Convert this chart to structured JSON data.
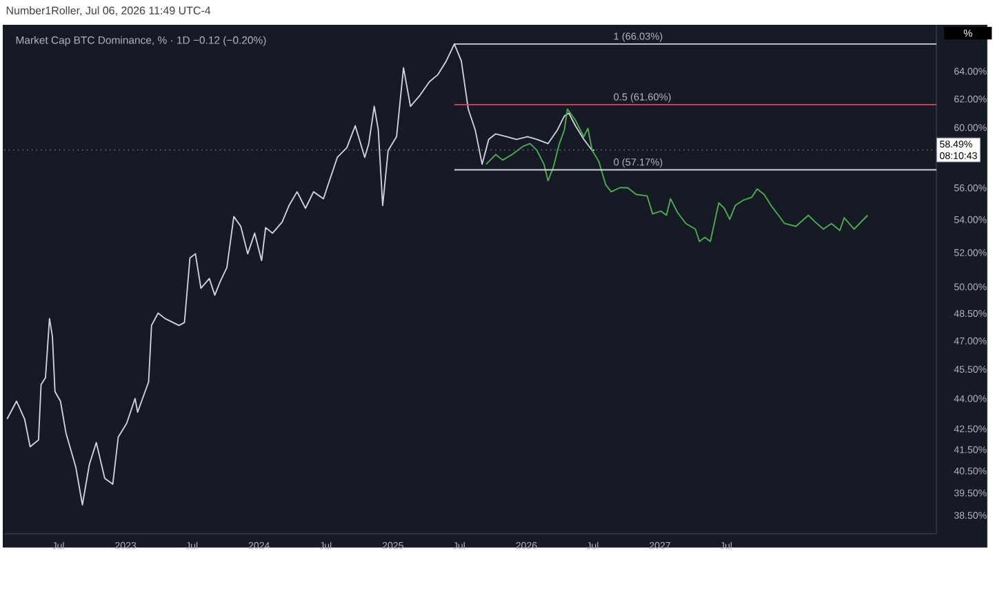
{
  "chart_data": {
    "type": "line",
    "title": "Market Cap BTC Dominance, % · 1D  −0.12 (−0.20%)",
    "subtitle": "Number1Roller, Jul 06, 2026 11:49 UTC-4",
    "ylabel": "%",
    "log": "y",
    "xlim": [
      "2022-02-03",
      "2029-01-26"
    ],
    "xticks": [
      {
        "value": "2022-07",
        "label": "Jul"
      },
      {
        "value": "2023",
        "label": "2023"
      },
      {
        "value": "2023-07",
        "label": "Jul"
      },
      {
        "value": "2024",
        "label": "2024"
      },
      {
        "value": "2024-07",
        "label": "Jul"
      },
      {
        "value": "2025",
        "label": "2025"
      },
      {
        "value": "2025-07",
        "label": "Jul"
      },
      {
        "value": "2026",
        "label": "2026"
      },
      {
        "value": "2026-07",
        "label": "Jul"
      },
      {
        "value": "2027",
        "label": "2027"
      },
      {
        "value": "2027-07",
        "label": "Jul"
      }
    ],
    "ylim": [
      37.7,
      67.5
    ],
    "yticks": [
      {
        "value": 38.5,
        "label": "38.50%"
      },
      {
        "value": 39.5,
        "label": "39.50%"
      },
      {
        "value": 40.5,
        "label": "40.50%"
      },
      {
        "value": 41.5,
        "label": "41.50%"
      },
      {
        "value": 42.5,
        "label": "42.50%"
      },
      {
        "value": 44,
        "label": "44.00%"
      },
      {
        "value": 45.5,
        "label": "45.50%"
      },
      {
        "value": 47,
        "label": "47.00%"
      },
      {
        "value": 48.5,
        "label": "48.50%"
      },
      {
        "value": 50,
        "label": "50.00%"
      },
      {
        "value": 52,
        "label": "52.00%"
      },
      {
        "value": 54,
        "label": "54.00%"
      },
      {
        "value": 56,
        "label": "56.00%"
      },
      {
        "value": 60,
        "label": "60.00%"
      },
      {
        "value": 62,
        "label": "62.00%"
      },
      {
        "value": 64,
        "label": "64.00%"
      }
    ],
    "ref_lines": [
      {
        "axis": "y",
        "value": 58.49,
        "label": "58.49%",
        "color": "#9598a1",
        "line_style": "dotted"
      }
    ],
    "annotations": [
      "08:10:43",
      {
        "text": "1 (66.03%)",
        "x": "2026-08-21",
        "y": 66.03
      },
      {
        "text": "0.5 (61.60%)",
        "x": "2026-08-21",
        "y": 61.6
      },
      {
        "text": "0 (57.17%)",
        "x": "2026-08-21",
        "y": 57.17
      }
    ],
    "series": [
      {
        "color": "#d1d4dc",
        "x": [
          "2022-02-11",
          "2022-03-09",
          "2022-03-31",
          "2022-04-15",
          "2022-05-08",
          "2022-05-15",
          "2022-05-27",
          "2022-06-07",
          "2022-06-15",
          "2022-06-22",
          "2022-07-07",
          "2022-07-22",
          "2022-08-18",
          "2022-09-05",
          "2022-09-24",
          "2022-10-13",
          "2022-11-05",
          "2022-11-27",
          "2022-12-12",
          "2023-01-04",
          "2023-01-27",
          "2023-02-03",
          "2023-03-05",
          "2023-03-13",
          "2023-03-31",
          "2023-04-19",
          "2023-05-27",
          "2023-06-11",
          "2023-06-26",
          "2023-07-11",
          "2023-07-26",
          "2023-08-18",
          "2023-09-02",
          "2023-09-17",
          "2023-10-05",
          "2023-10-24",
          "2023-11-12",
          "2023-12-01",
          "2023-12-20",
          "2024-01-08",
          "2024-01-19",
          "2024-02-07",
          "2024-03-04",
          "2024-03-23",
          "2024-04-14",
          "2024-05-07",
          "2024-05-29",
          "2024-06-25",
          "2024-07-14",
          "2024-08-02",
          "2024-08-28",
          "2024-09-20",
          "2024-10-16",
          "2024-10-27",
          "2024-11-11",
          "2024-11-22",
          "2024-12-04",
          "2024-12-19",
          "2025-01-11",
          "2025-01-30",
          "2025-02-18",
          "2025-03-16",
          "2025-04-11",
          "2025-05-04",
          "2025-05-27",
          "2025-06-18",
          "2025-07-07",
          "2025-07-26",
          "2025-08-14",
          "2025-09-02",
          "2025-09-20",
          "2025-10-09",
          "2025-11-08",
          "2025-12-05",
          "2026-01-04",
          "2026-01-30",
          "2026-03-01",
          "2026-03-27",
          "2026-04-15",
          "2026-04-27",
          "2026-05-15",
          "2026-06-07",
          "2026-06-30",
          "2026-07-06"
        ],
        "values": [
          42.98,
          43.87,
          42.98,
          41.64,
          41.97,
          44.71,
          45.06,
          48.22,
          47.24,
          44.35,
          43.87,
          42.3,
          40.67,
          38.97,
          40.8,
          41.84,
          40.16,
          39.9,
          42.1,
          42.77,
          44.0,
          43.32,
          44.85,
          47.84,
          48.52,
          48.22,
          47.84,
          48.0,
          51.68,
          51.93,
          49.92,
          50.48,
          49.53,
          50.32,
          51.12,
          54.19,
          53.59,
          51.93,
          53.17,
          51.53,
          53.51,
          53.17,
          53.85,
          54.88,
          55.75,
          54.71,
          55.75,
          55.31,
          56.64,
          57.99,
          58.64,
          60.13,
          57.99,
          58.91,
          61.48,
          59.85,
          54.88,
          58.45,
          59.38,
          64.25,
          61.48,
          62.26,
          63.25,
          63.75,
          64.76,
          66.03,
          64.76,
          61.29,
          59.85,
          57.54,
          59.2,
          59.57,
          59.38,
          59.2,
          59.38,
          59.2,
          58.91,
          59.85,
          60.81,
          61.0,
          60.13,
          59.2,
          58.45,
          58.49
        ]
      },
      {
        "color": "#4caf50",
        "x": [
          "2025-09-13",
          "2025-10-09",
          "2025-10-28",
          "2025-11-23",
          "2025-12-23",
          "2026-01-11",
          "2026-01-30",
          "2026-02-18",
          "2026-03-01",
          "2026-03-16",
          "2026-03-31",
          "2026-04-15",
          "2026-04-23",
          "2026-05-15",
          "2026-06-07",
          "2026-06-18",
          "2026-06-30",
          "2026-07-18",
          "2026-08-06",
          "2026-08-21",
          "2026-09-13",
          "2026-10-05",
          "2026-10-28",
          "2026-11-27",
          "2026-12-12",
          "2027-01-04",
          "2027-01-19",
          "2027-01-30",
          "2027-02-18",
          "2027-03-13",
          "2027-04-08",
          "2027-04-19",
          "2027-05-04",
          "2027-05-19",
          "2027-06-11",
          "2027-06-26",
          "2027-07-11",
          "2027-07-26",
          "2027-08-18",
          "2027-09-09",
          "2027-09-24",
          "2027-10-13",
          "2027-11-01",
          "2027-12-08",
          "2028-01-08",
          "2028-02-11",
          "2028-03-01",
          "2028-03-23",
          "2028-04-14",
          "2028-05-07",
          "2028-05-19",
          "2028-06-15",
          "2028-07-22"
        ],
        "values": [
          57.54,
          58.18,
          57.81,
          58.18,
          58.73,
          58.91,
          58.45,
          57.54,
          56.46,
          57.36,
          58.82,
          59.85,
          61.29,
          60.51,
          59.38,
          59.95,
          58.45,
          57.72,
          56.19,
          55.75,
          56.01,
          56.01,
          55.58,
          55.49,
          54.36,
          54.53,
          54.27,
          55.31,
          54.45,
          53.76,
          53.42,
          52.67,
          52.92,
          52.67,
          55.05,
          54.71,
          54.02,
          54.88,
          55.23,
          55.4,
          55.93,
          55.58,
          54.88,
          53.76,
          53.59,
          54.27,
          53.85,
          53.42,
          53.76,
          53.34,
          54.11,
          53.42,
          54.27
        ]
      },
      {
        "color": "#d1d4dc",
        "x": [
          "2025-06-18",
          "2029-01-26"
        ],
        "values": [
          66.03,
          66.03
        ]
      },
      {
        "color": "#e0435a",
        "x": [
          "2025-06-18",
          "2029-01-26"
        ],
        "values": [
          61.6,
          61.6
        ]
      },
      {
        "color": "#d1d4dc",
        "x": [
          "2025-06-18",
          "2029-01-26"
        ],
        "values": [
          57.17,
          57.17
        ]
      }
    ]
  }
}
